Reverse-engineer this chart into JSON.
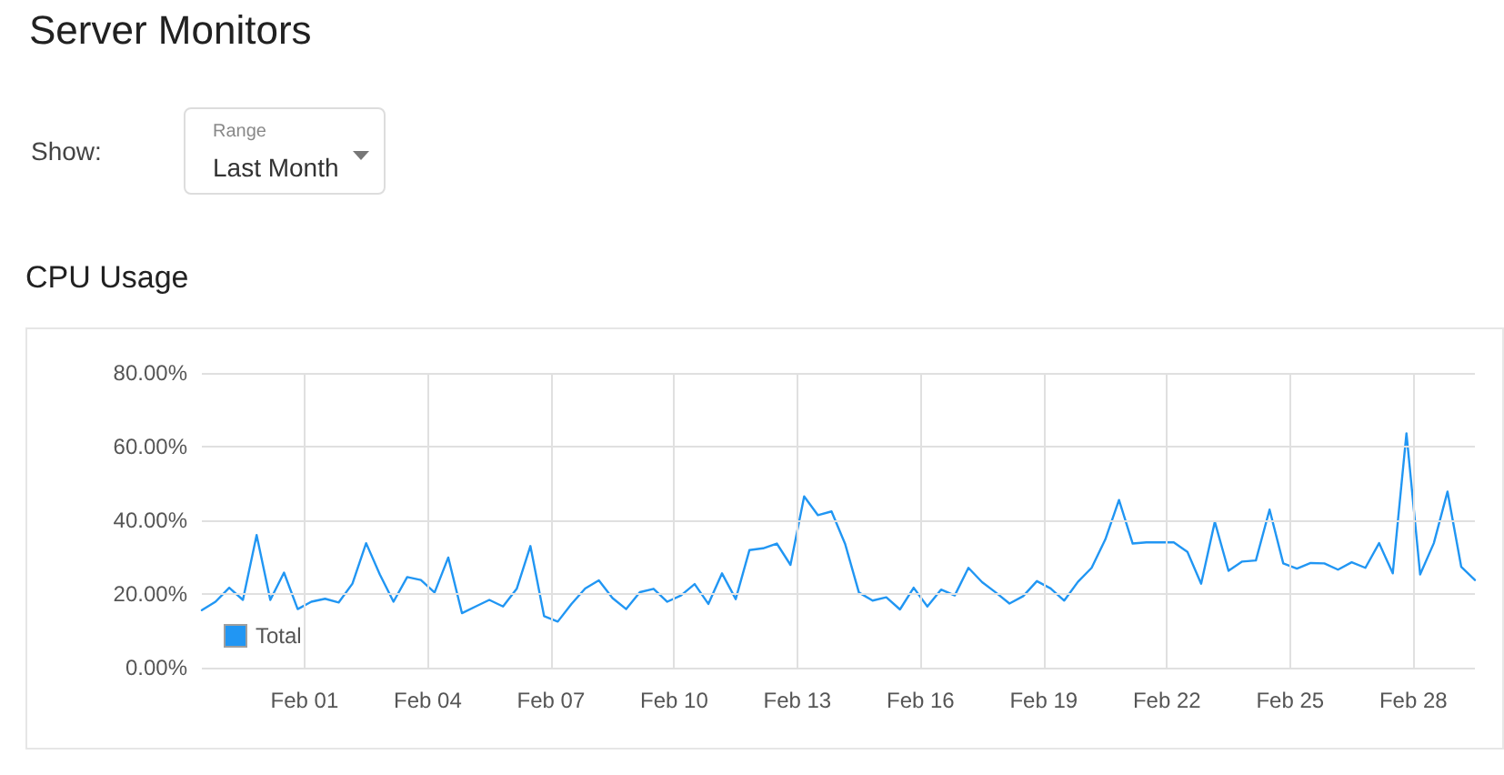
{
  "chart_data": {
    "type": "line",
    "title": "Server Monitors",
    "subtitle": "CPU Usage",
    "annotations": [
      "Show:",
      "Range",
      "Last Month"
    ],
    "x": [
      "--01-29T12:00",
      "--01-29T20:00",
      "--01-30T04:00",
      "--01-30T12:00",
      "--01-30T20:00",
      "--01-31T04:00",
      "--01-31T12:00",
      "--01-31T20:00",
      "--02-01T04:00",
      "--02-01T12:00",
      "--02-01T20:00",
      "--02-02T04:00",
      "--02-02T12:00",
      "--02-02T20:00",
      "--02-03T04:00",
      "--02-03T12:00",
      "--02-03T20:00",
      "--02-04T04:00",
      "--02-04T12:00",
      "--02-04T20:00",
      "--02-05T04:00",
      "--02-05T12:00",
      "--02-05T20:00",
      "--02-06T04:00",
      "--02-06T12:00",
      "--02-06T20:00",
      "--02-07T04:00",
      "--02-07T12:00",
      "--02-07T20:00",
      "--02-08T04:00",
      "--02-08T12:00",
      "--02-08T20:00",
      "--02-09T04:00",
      "--02-09T12:00",
      "--02-09T20:00",
      "--02-10T04:00",
      "--02-10T12:00",
      "--02-10T20:00",
      "--02-11T04:00",
      "--02-11T12:00",
      "--02-11T20:00",
      "--02-12T04:00",
      "--02-12T12:00",
      "--02-12T20:00",
      "--02-13T04:00",
      "--02-13T12:00",
      "--02-13T20:00",
      "--02-14T04:00",
      "--02-14T12:00",
      "--02-14T20:00",
      "--02-15T04:00",
      "--02-15T12:00",
      "--02-15T20:00",
      "--02-16T04:00",
      "--02-16T12:00",
      "--02-16T20:00",
      "--02-17T04:00",
      "--02-17T12:00",
      "--02-17T20:00",
      "--02-18T04:00",
      "--02-18T12:00",
      "--02-18T20:00",
      "--02-19T04:00",
      "--02-19T12:00",
      "--02-19T20:00",
      "--02-20T04:00",
      "--02-20T12:00",
      "--02-20T20:00",
      "--02-21T04:00",
      "--02-21T12:00",
      "--02-21T20:00",
      "--02-22T04:00",
      "--02-22T12:00",
      "--02-22T20:00",
      "--02-23T04:00",
      "--02-23T12:00",
      "--02-23T20:00",
      "--02-24T04:00",
      "--02-24T12:00",
      "--02-24T20:00",
      "--02-25T04:00",
      "--02-25T12:00",
      "--02-25T20:00",
      "--02-26T04:00",
      "--02-26T12:00",
      "--02-26T20:00",
      "--02-27T04:00",
      "--02-27T12:00",
      "--02-27T20:00",
      "--02-28T04:00",
      "--02-28T12:00",
      "--02-28T20:00",
      "--03-01T04:00",
      "--03-01T12:00"
    ],
    "series": [
      {
        "name": "Total",
        "color": "#2196f3",
        "values": [
          15.6,
          17.9,
          21.7,
          18.4,
          36.0,
          18.4,
          25.8,
          15.9,
          17.9,
          18.7,
          17.7,
          22.8,
          33.8,
          25.3,
          17.9,
          24.6,
          23.8,
          20.4,
          29.9,
          14.8,
          16.6,
          18.4,
          16.6,
          21.4,
          33.0,
          14.0,
          12.5,
          17.3,
          21.5,
          23.7,
          18.9,
          15.9,
          20.5,
          21.4,
          17.9,
          19.6,
          22.7,
          17.3,
          25.6,
          18.6,
          31.9,
          32.4,
          33.7,
          27.9,
          46.5,
          41.4,
          42.4,
          33.5,
          20.4,
          18.2,
          19.1,
          15.8,
          21.7,
          16.6,
          21.2,
          19.6,
          27.1,
          23.2,
          20.4,
          17.4,
          19.4,
          23.5,
          21.5,
          18.2,
          23.3,
          27.1,
          34.8,
          45.5,
          33.7,
          34.0,
          34.0,
          34.0,
          31.4,
          22.8,
          39.6,
          26.3,
          28.8,
          29.1,
          42.9,
          28.3,
          26.9,
          28.4,
          28.3,
          26.6,
          28.6,
          27.1,
          33.8,
          25.6,
          63.6,
          25.3,
          33.8,
          47.8,
          27.4,
          23.8
        ]
      }
    ],
    "xlim": [
      "--01-29T12:00",
      "--03-01T12:00"
    ],
    "xticks": [
      {
        "value": "--02-01",
        "label": "Feb 01"
      },
      {
        "value": "--02-04",
        "label": "Feb 04"
      },
      {
        "value": "--02-07",
        "label": "Feb 07"
      },
      {
        "value": "--02-10",
        "label": "Feb 10"
      },
      {
        "value": "--02-13",
        "label": "Feb 13"
      },
      {
        "value": "--02-16",
        "label": "Feb 16"
      },
      {
        "value": "--02-19",
        "label": "Feb 19"
      },
      {
        "value": "--02-22",
        "label": "Feb 22"
      },
      {
        "value": "--02-25",
        "label": "Feb 25"
      },
      {
        "value": "--02-28",
        "label": "Feb 28"
      }
    ],
    "ylim": [
      0,
      80
    ],
    "yticks": [
      {
        "value": 0,
        "label": "0.00%"
      },
      {
        "value": 20,
        "label": "20.00%"
      },
      {
        "value": 40,
        "label": "40.00%"
      },
      {
        "value": 60,
        "label": "60.00%"
      },
      {
        "value": 80,
        "label": "80.00%"
      }
    ],
    "grid": true,
    "legend": "bottom left",
    "marker": "none",
    "line_style": "solid"
  }
}
